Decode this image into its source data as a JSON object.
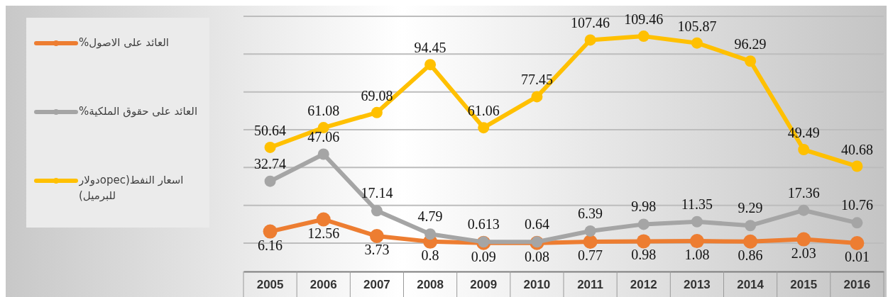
{
  "chart_data": {
    "type": "line",
    "categories": [
      "2005",
      "2006",
      "2007",
      "2008",
      "2009",
      "2010",
      "2011",
      "2012",
      "2013",
      "2014",
      "2015",
      "2016"
    ],
    "series": [
      {
        "name": "العائد على الاصول%",
        "color": "#ed7d31",
        "values": [
          6.16,
          12.56,
          3.73,
          0.8,
          0.09,
          0.08,
          0.77,
          0.98,
          1.08,
          0.86,
          2.03,
          0.01
        ]
      },
      {
        "name": "العائد على حقوق الملكية%",
        "color": "#a5a5a5",
        "values": [
          32.74,
          47.06,
          17.14,
          4.79,
          0.613,
          0.64,
          6.39,
          9.98,
          11.35,
          9.29,
          17.36,
          10.76
        ]
      },
      {
        "name": "اسعار النفط(opecدولار للبرميل)",
        "color": "#ffc000",
        "values": [
          50.64,
          61.08,
          69.08,
          94.45,
          61.06,
          77.45,
          107.46,
          109.46,
          105.87,
          96.29,
          49.49,
          40.68
        ]
      }
    ],
    "ylim": [
      -15,
      120
    ],
    "yticks": [
      {
        "value": 0,
        "label": null
      },
      {
        "value": 20,
        "label": null
      },
      {
        "value": 40,
        "label": null
      },
      {
        "value": 60,
        "label": null
      },
      {
        "value": 80,
        "label": null
      },
      {
        "value": 100,
        "label": null
      },
      {
        "value": 120,
        "label": null
      }
    ],
    "grid": "y",
    "legend": "left",
    "marker": "circle",
    "line_style": "solid",
    "data_labels": true
  }
}
